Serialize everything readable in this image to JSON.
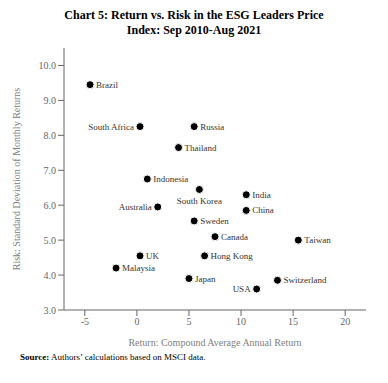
{
  "chart_data": {
    "type": "scatter",
    "title": "Chart 5: Return vs. Risk in the ESG Leaders Price\nIndex: Sep 2010-Aug 2021",
    "xlabel": "Return: Compound Average Annual Return",
    "ylabel": "Risk: Standard Deviation of Monthly Returns",
    "source": [
      "Source:",
      " Authors’ calculations based on MSCI data."
    ],
    "xlim": [
      -7,
      22
    ],
    "ylim": [
      3.0,
      10.5
    ],
    "xticks": [
      -5,
      0,
      5,
      10,
      15,
      20
    ],
    "yticks": [
      {
        "value": 3,
        "label": "3.0"
      },
      {
        "value": 4,
        "label": "4.0"
      },
      {
        "value": 5,
        "label": "5.0"
      },
      {
        "value": 6,
        "label": "6.0"
      },
      {
        "value": 7,
        "label": "7.0"
      },
      {
        "value": 8,
        "label": "8.0"
      },
      {
        "value": 9,
        "label": "9.0"
      },
      {
        "value": 10,
        "label": "10.0"
      }
    ],
    "labels": [
      "Brazil",
      "South Africa",
      "Russia",
      "Thailand",
      "Indonesia",
      "South Korea",
      "India",
      "China",
      "Australia",
      "Sweden",
      "Canada",
      "Taiwan",
      "Malaysia",
      "UK",
      "Hong Kong",
      "Switzerland",
      "Japan",
      "USA"
    ],
    "x": [
      -4.5,
      0.3,
      5.5,
      4.0,
      1.0,
      6.0,
      10.5,
      10.5,
      2.0,
      5.5,
      7.5,
      15.5,
      -2.0,
      0.3,
      6.5,
      13.5,
      5.0,
      11.5
    ],
    "values": [
      9.45,
      8.25,
      8.25,
      7.65,
      6.75,
      6.45,
      6.3,
      5.85,
      5.95,
      5.55,
      5.1,
      5.0,
      4.2,
      4.55,
      4.55,
      3.85,
      3.9,
      3.6
    ]
  }
}
